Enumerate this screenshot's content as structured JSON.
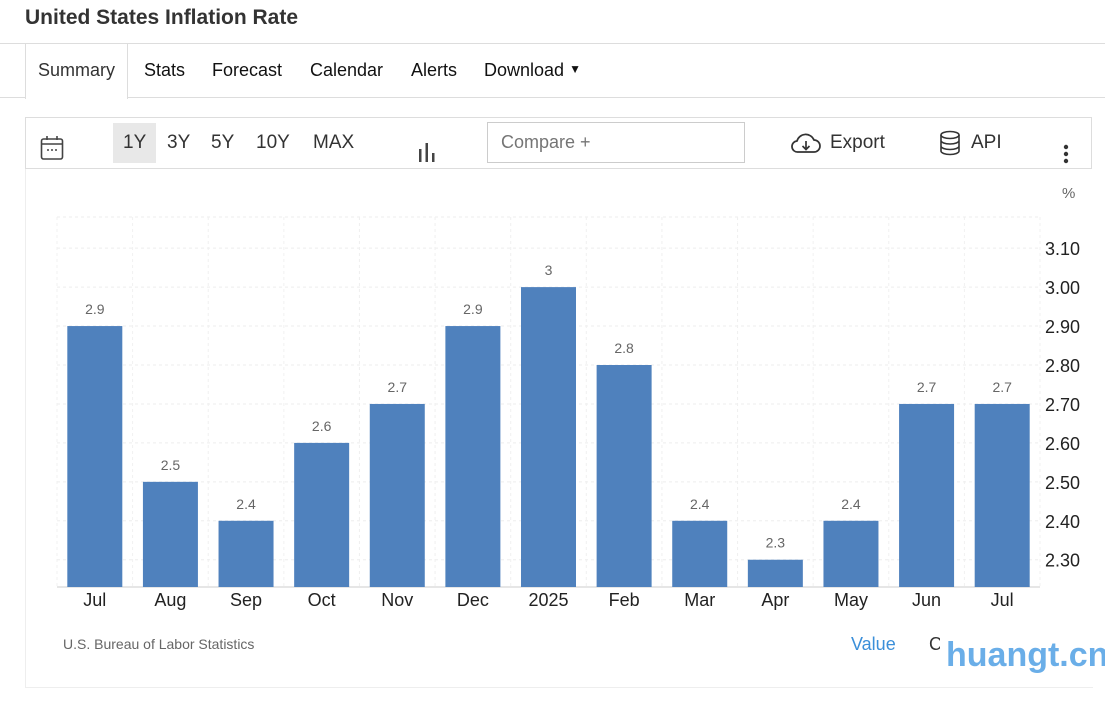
{
  "header": {
    "title": "United States Inflation Rate"
  },
  "tabs": [
    {
      "label": "Summary",
      "active": true
    },
    {
      "label": "Stats"
    },
    {
      "label": "Forecast"
    },
    {
      "label": "Calendar"
    },
    {
      "label": "Alerts"
    },
    {
      "label": "Download"
    }
  ],
  "toolbar": {
    "ranges": [
      "1Y",
      "3Y",
      "5Y",
      "10Y",
      "MAX"
    ],
    "active_range": "1Y",
    "compare_placeholder": "Compare +",
    "export_label": "Export",
    "api_label": "API"
  },
  "footer": {
    "source": "U.S. Bureau of Labor Statistics",
    "value_link": "Value",
    "cut_text": "C",
    "watermark": "huangt.cn"
  },
  "chart_data": {
    "type": "bar",
    "unit": "%",
    "categories": [
      "Jul",
      "Aug",
      "Sep",
      "Oct",
      "Nov",
      "Dec",
      "2025",
      "Feb",
      "Mar",
      "Apr",
      "May",
      "Jun",
      "Jul"
    ],
    "values": [
      2.9,
      2.5,
      2.4,
      2.6,
      2.7,
      2.9,
      3,
      2.8,
      2.4,
      2.3,
      2.4,
      2.7,
      2.7
    ],
    "data_labels": [
      "2.9",
      "2.5",
      "2.4",
      "2.6",
      "2.7",
      "2.9",
      "3",
      "2.8",
      "2.4",
      "2.3",
      "2.4",
      "2.7",
      "2.7"
    ],
    "yticks": [
      "2.30",
      "2.40",
      "2.50",
      "2.60",
      "2.70",
      "2.80",
      "2.90",
      "3.00",
      "3.10"
    ],
    "ylim": [
      2.23,
      3.18
    ],
    "axis_position": "right",
    "grid": true,
    "bar_color": "#4f81bd"
  }
}
